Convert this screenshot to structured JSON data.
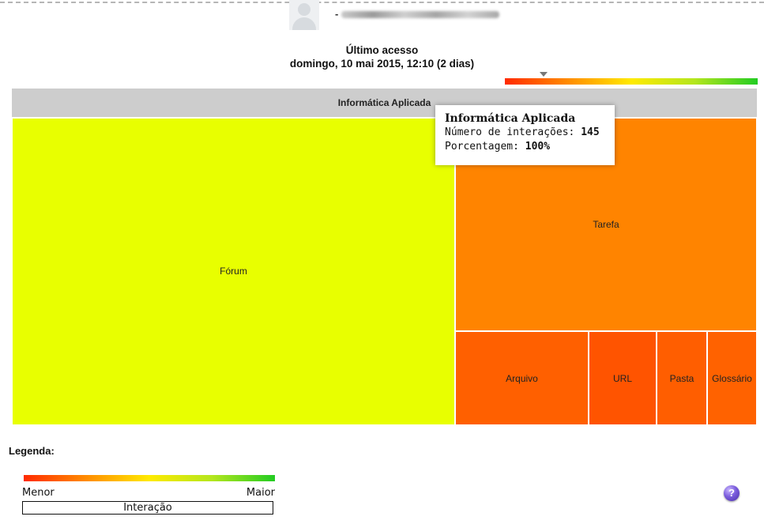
{
  "user": {
    "name_prefix": "-"
  },
  "access": {
    "label": "Último acesso",
    "datetime": "domingo, 10 mai 2015, 12:10  (2 dias)"
  },
  "chart_data": {
    "type": "treemap",
    "title": "Informática Aplicada",
    "cells": [
      {
        "name": "Fórum",
        "color": "#e8ff00",
        "color_level": "high"
      },
      {
        "name": "Tarefa",
        "color": "#ff8400",
        "color_level": "medium-low"
      },
      {
        "name": "Arquivo",
        "color": "#ff6000",
        "color_level": "low"
      },
      {
        "name": "URL",
        "color": "#ff5400",
        "color_level": "low"
      },
      {
        "name": "Pasta",
        "color": "#ff5e00",
        "color_level": "low"
      },
      {
        "name": "Glossário",
        "color": "#ff6200",
        "color_level": "low"
      }
    ],
    "color_scale": [
      "#ff2a00",
      "#ff8c00",
      "#ffea00",
      "#b4e61e",
      "#22cc22"
    ],
    "tooltip": {
      "title": "Informática Aplicada",
      "interactions_label": "Número de interações:",
      "interactions_value": "145",
      "percentage_label": "Porcentagem:",
      "percentage_value": "100%"
    }
  },
  "legend": {
    "title": "Legenda:",
    "min_label": "Menor",
    "max_label": "Maior",
    "caption": "Interação"
  },
  "help": {
    "symbol": "?"
  }
}
